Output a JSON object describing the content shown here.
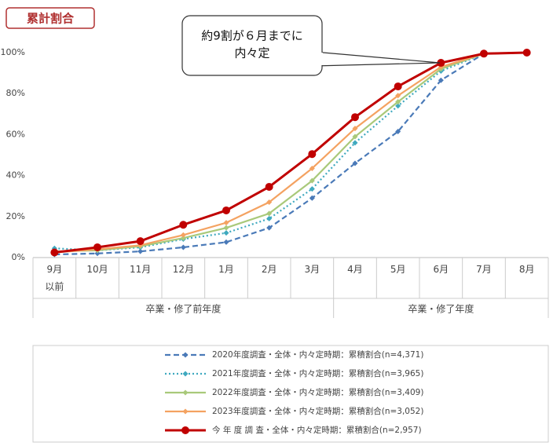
{
  "chart_data": {
    "type": "line",
    "title": "累計割合",
    "annotation": [
      "約9割が６月までに",
      "内々定"
    ],
    "categories": [
      "9月以前",
      "10月",
      "11月",
      "12月",
      "1月",
      "2月",
      "3月",
      "4月",
      "5月",
      "6月",
      "7月",
      "8月"
    ],
    "x_groups": [
      "卒業・修了前年度",
      "卒業・修了年度"
    ],
    "ylim": [
      0,
      100
    ],
    "yticks": [
      {
        "value": 0,
        "label": "0%"
      },
      {
        "value": 20,
        "label": "20%"
      },
      {
        "value": 40,
        "label": "40%"
      },
      {
        "value": 60,
        "label": "60%"
      },
      {
        "value": 80,
        "label": "80%"
      },
      {
        "value": 100,
        "label": "100%"
      }
    ],
    "grid": false,
    "series": [
      {
        "name": "2020年度調査・全体・内々定時期：累積割合(n=4,371)",
        "color": "#4a7ab8",
        "line_style": "dashed",
        "marker": "diamond",
        "values": [
          1.5,
          2,
          3,
          5,
          7.5,
          14.5,
          29,
          46,
          61.5,
          86.5,
          99.5,
          100
        ]
      },
      {
        "name": "2021年度調査・全体・内々定時期：累積割合(n=3,965)",
        "color": "#3fa9bf",
        "line_style": "dotted",
        "marker": "diamond",
        "values": [
          4.5,
          3.5,
          5,
          9,
          12,
          19,
          33.5,
          56,
          74,
          91,
          99.5,
          100
        ]
      },
      {
        "name": "2022年度調査・全体・内々定時期：累積割合(n=3,409)",
        "color": "#a9c97a",
        "line_style": "solid",
        "marker": "diamond",
        "values": [
          3,
          3.5,
          5.5,
          9.5,
          14.5,
          21.5,
          37.5,
          59,
          76,
          92,
          99.5,
          100
        ]
      },
      {
        "name": "2023年度調査・全体・内々定時期：累積割合(n=3,052)",
        "color": "#f4a261",
        "line_style": "solid",
        "marker": "diamond",
        "values": [
          2.5,
          4,
          6,
          11,
          17,
          27,
          43.5,
          63,
          79,
          93,
          99.5,
          100
        ]
      },
      {
        "name": "今 年 度 調 査・全体・内々定時期：累積割合(n=2,957)",
        "color": "#c00000",
        "line_style": "solid",
        "marker": "circle",
        "values": [
          2.5,
          5,
          8,
          16,
          23,
          34.5,
          50.5,
          68.5,
          83.5,
          95,
          99.5,
          100
        ]
      }
    ]
  }
}
